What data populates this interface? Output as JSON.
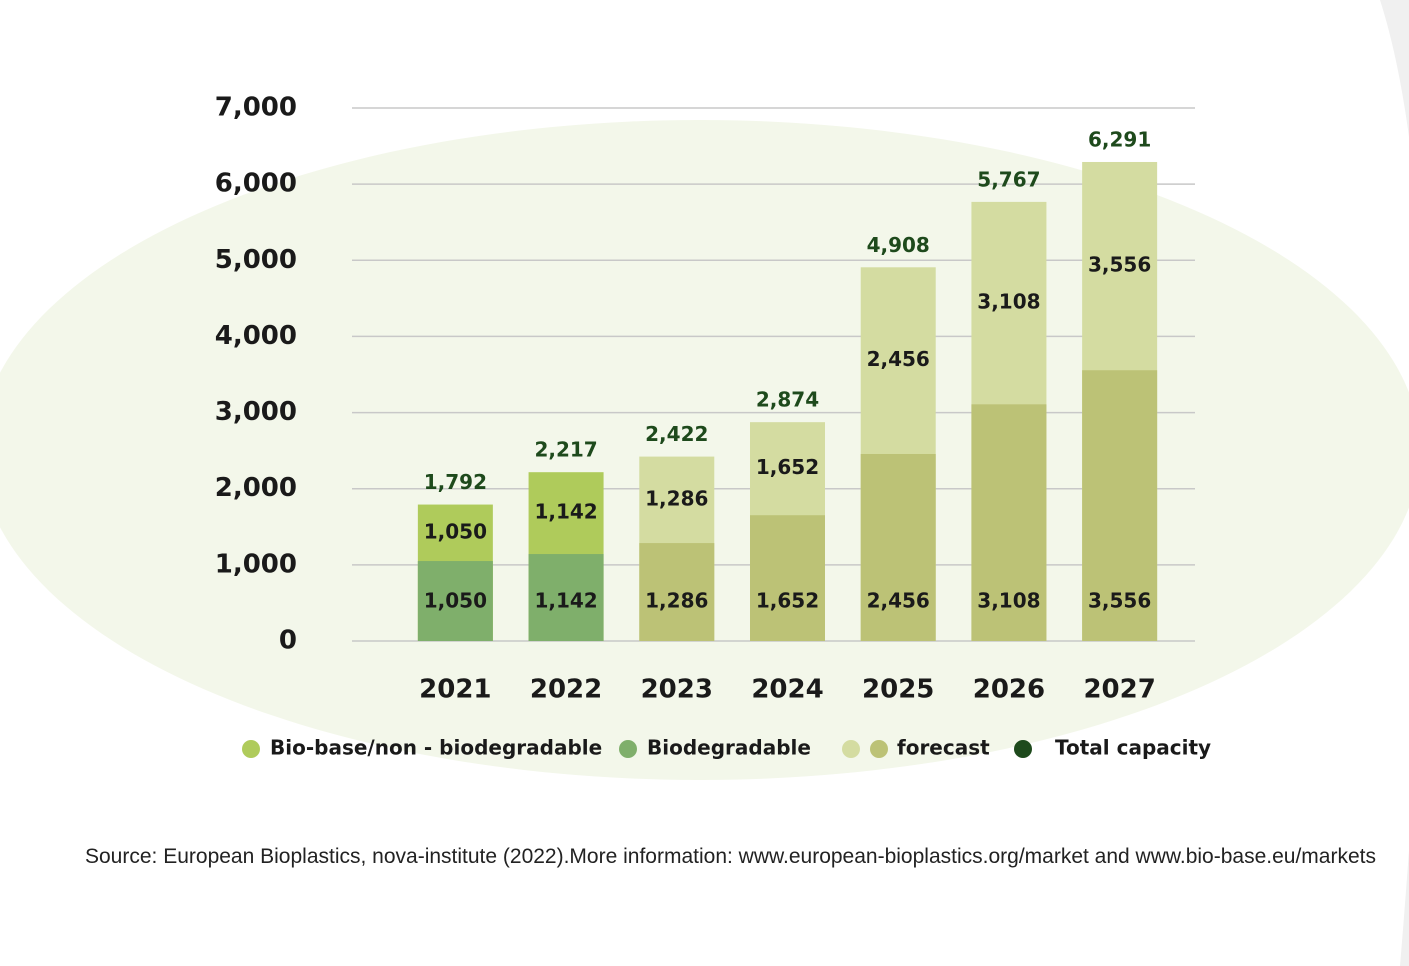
{
  "chart_data": {
    "type": "bar",
    "categories": [
      "2021",
      "2022",
      "2023",
      "2024",
      "2025",
      "2026",
      "2027"
    ],
    "series": [
      {
        "name": "Bio-base/non - biodegradable",
        "color": "#afcb5b",
        "role": "upper",
        "values": [
          1050,
          1142,
          null,
          null,
          null,
          null,
          null
        ],
        "value_labels": [
          "1,050",
          "1,142",
          null,
          null,
          null,
          null,
          null
        ]
      },
      {
        "name": "Biodegradable",
        "color": "#7faf6b",
        "role": "lower",
        "values": [
          1050,
          1142,
          null,
          null,
          null,
          null,
          null
        ],
        "value_labels": [
          "1,050",
          "1,142",
          null,
          null,
          null,
          null,
          null
        ]
      },
      {
        "name": "forecast",
        "colors": [
          "#d4dca1",
          "#bcc276"
        ],
        "role": "forecast",
        "values": [
          null,
          null,
          1286,
          1652,
          2456,
          3108,
          3556
        ],
        "value_labels": [
          null,
          null,
          "1,286",
          "1,652",
          "2,456",
          "3,108",
          "3,556"
        ],
        "upper_values": [
          null,
          null,
          1286,
          1652,
          2456,
          3108,
          3556
        ],
        "upper_value_labels": [
          null,
          null,
          "1,286",
          "1,652",
          "2,456",
          "3,108",
          "3,556"
        ]
      },
      {
        "name": "Total capacity",
        "color": "#1e4a1c",
        "role": "total",
        "values": [
          1792,
          2217,
          2422,
          2874,
          4908,
          5767,
          6291
        ],
        "value_labels": [
          "1,792",
          "2,217",
          "2,422",
          "2,874",
          "4,908",
          "5,767",
          "6,291"
        ]
      }
    ],
    "ylim": [
      0,
      7000
    ],
    "yticks": [
      0,
      {
        "value": 1000,
        "label": "1,000"
      },
      {
        "value": 2000,
        "label": "2,000"
      },
      {
        "value": 3000,
        "label": "3,000"
      },
      {
        "value": 4000,
        "label": "4,000"
      },
      {
        "value": 5000,
        "label": "5,000"
      },
      {
        "value": 6000,
        "label": "6,000"
      },
      {
        "value": 7000,
        "label": "7,000"
      }
    ],
    "grid": true,
    "source": "Source: European Bioplastics, nova-institute (2022).More information: www.european-bioplastics.org/market and www.bio-base.eu/markets"
  }
}
